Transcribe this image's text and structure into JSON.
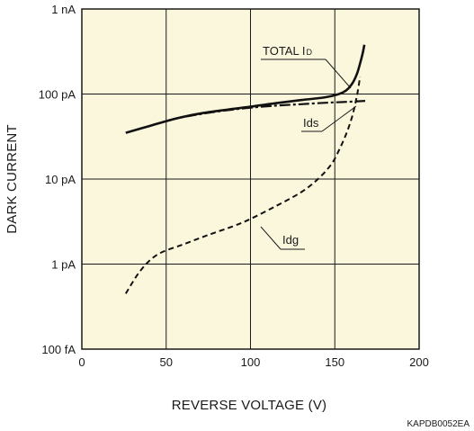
{
  "chart_data": {
    "type": "line",
    "xlabel": "REVERSE VOLTAGE (V)",
    "ylabel": "DARK CURRENT",
    "xlim": [
      0,
      200
    ],
    "ylim": [
      1e-13,
      1e-09
    ],
    "y_scale": "log",
    "grid": true,
    "background_color": "#fbf7dc",
    "x_ticks": [
      {
        "value": 0,
        "label": "0"
      },
      {
        "value": 50,
        "label": "50"
      },
      {
        "value": 100,
        "label": "100"
      },
      {
        "value": 150,
        "label": "150"
      },
      {
        "value": 200,
        "label": "200"
      }
    ],
    "y_ticks": [
      {
        "value": 1e-13,
        "label": "100 fA"
      },
      {
        "value": 1e-12,
        "label": "1 pA"
      },
      {
        "value": 1e-11,
        "label": "10 pA"
      },
      {
        "value": 1e-10,
        "label": "100 pA"
      },
      {
        "value": 1e-09,
        "label": "1 nA"
      }
    ],
    "series": [
      {
        "name": "TOTAL ID",
        "style": "solid",
        "points": [
          [
            26,
            3.5e-11
          ],
          [
            40,
            4.2e-11
          ],
          [
            55,
            5.1e-11
          ],
          [
            70,
            5.9e-11
          ],
          [
            85,
            6.5e-11
          ],
          [
            100,
            7.1e-11
          ],
          [
            115,
            7.8e-11
          ],
          [
            130,
            8.5e-11
          ],
          [
            145,
            9.2e-11
          ],
          [
            155,
            1.05e-10
          ],
          [
            160,
            1.3e-10
          ],
          [
            163,
            1.7e-10
          ],
          [
            165,
            2.3e-10
          ],
          [
            166.5,
            3e-10
          ],
          [
            167.5,
            3.8e-10
          ]
        ]
      },
      {
        "name": "Ids",
        "style": "dash-dot",
        "points": [
          [
            40,
            4.2e-11
          ],
          [
            55,
            5.1e-11
          ],
          [
            70,
            5.8e-11
          ],
          [
            85,
            6.4e-11
          ],
          [
            100,
            6.9e-11
          ],
          [
            115,
            7.3e-11
          ],
          [
            130,
            7.6e-11
          ],
          [
            145,
            7.9e-11
          ],
          [
            158,
            8.1e-11
          ],
          [
            168,
            8.3e-11
          ]
        ]
      },
      {
        "name": "Idg",
        "style": "dashed",
        "points": [
          [
            26,
            4.5e-13
          ],
          [
            35,
            8.5e-13
          ],
          [
            45,
            1.3e-12
          ],
          [
            60,
            1.7e-12
          ],
          [
            75,
            2.2e-12
          ],
          [
            90,
            2.8e-12
          ],
          [
            100,
            3.4e-12
          ],
          [
            115,
            4.8e-12
          ],
          [
            130,
            7e-12
          ],
          [
            140,
            1e-11
          ],
          [
            148,
            1.5e-11
          ],
          [
            153,
            2.3e-11
          ],
          [
            157,
            3.5e-11
          ],
          [
            160,
            5.2e-11
          ],
          [
            162,
            7.5e-11
          ],
          [
            163.5,
            1.05e-10
          ],
          [
            165,
            1.6e-10
          ]
        ]
      }
    ],
    "annotations": {
      "total_main": "TOTAL I",
      "total_sub": "D",
      "ids": "Ids",
      "idg": "Idg"
    },
    "code": "KAPDB0052EA"
  }
}
